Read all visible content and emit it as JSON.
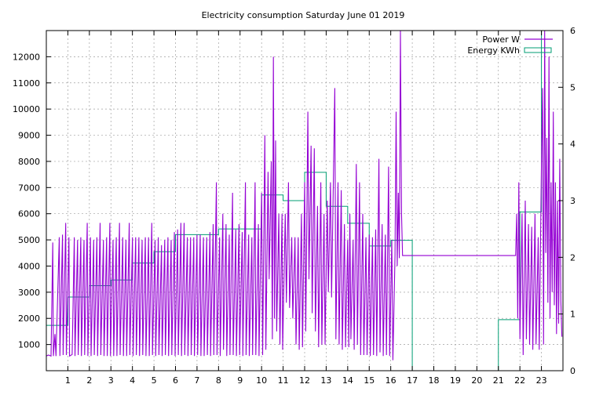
{
  "chart_data": {
    "type": "line",
    "title": "Electricity consumption Saturday June 01 2019",
    "xlabel": "",
    "ylabel": "",
    "y2label": "",
    "xlim": [
      0,
      24
    ],
    "ylim": [
      0,
      13000
    ],
    "y2lim": [
      0,
      6
    ],
    "x_ticks": [
      1,
      2,
      3,
      4,
      5,
      6,
      7,
      8,
      9,
      10,
      11,
      12,
      13,
      14,
      15,
      16,
      17,
      18,
      19,
      20,
      21,
      22,
      23
    ],
    "y_ticks": [
      1000,
      2000,
      3000,
      4000,
      5000,
      6000,
      7000,
      8000,
      9000,
      10000,
      11000,
      12000
    ],
    "y2_ticks": [
      0,
      1,
      2,
      3,
      4,
      5,
      6
    ],
    "grid": true,
    "legend_position": "top-right",
    "series": [
      {
        "name": "Power W",
        "axis": "left",
        "style": "line",
        "color": "#9400d3",
        "points": [
          [
            0.0,
            560
          ],
          [
            0.1,
            600
          ],
          [
            0.22,
            560
          ],
          [
            0.3,
            4900
          ],
          [
            0.33,
            560
          ],
          [
            0.4,
            1400
          ],
          [
            0.45,
            560
          ],
          [
            0.6,
            5100
          ],
          [
            0.63,
            560
          ],
          [
            0.75,
            5200
          ],
          [
            0.78,
            600
          ],
          [
            0.9,
            5650
          ],
          [
            0.93,
            600
          ],
          [
            1.05,
            5100
          ],
          [
            1.08,
            560
          ],
          [
            1.2,
            620
          ],
          [
            1.3,
            5100
          ],
          [
            1.33,
            560
          ],
          [
            1.45,
            5000
          ],
          [
            1.48,
            600
          ],
          [
            1.6,
            5100
          ],
          [
            1.63,
            560
          ],
          [
            1.75,
            5000
          ],
          [
            1.78,
            600
          ],
          [
            1.9,
            5650
          ],
          [
            1.93,
            560
          ],
          [
            2.05,
            5100
          ],
          [
            2.08,
            560
          ],
          [
            2.2,
            5000
          ],
          [
            2.23,
            600
          ],
          [
            2.35,
            5100
          ],
          [
            2.38,
            560
          ],
          [
            2.5,
            5650
          ],
          [
            2.53,
            600
          ],
          [
            2.65,
            5000
          ],
          [
            2.68,
            560
          ],
          [
            2.8,
            5100
          ],
          [
            2.83,
            560
          ],
          [
            2.95,
            5650
          ],
          [
            2.98,
            560
          ],
          [
            3.1,
            5000
          ],
          [
            3.13,
            560
          ],
          [
            3.25,
            5100
          ],
          [
            3.28,
            560
          ],
          [
            3.4,
            5650
          ],
          [
            3.43,
            600
          ],
          [
            3.55,
            5100
          ],
          [
            3.58,
            560
          ],
          [
            3.7,
            5000
          ],
          [
            3.73,
            560
          ],
          [
            3.85,
            5650
          ],
          [
            3.88,
            600
          ],
          [
            4.0,
            5100
          ],
          [
            4.03,
            560
          ],
          [
            4.15,
            5100
          ],
          [
            4.18,
            600
          ],
          [
            4.3,
            5100
          ],
          [
            4.33,
            560
          ],
          [
            4.45,
            5000
          ],
          [
            4.48,
            600
          ],
          [
            4.6,
            5100
          ],
          [
            4.63,
            560
          ],
          [
            4.75,
            5100
          ],
          [
            4.78,
            560
          ],
          [
            4.9,
            5650
          ],
          [
            4.93,
            600
          ],
          [
            5.05,
            5000
          ],
          [
            5.08,
            560
          ],
          [
            5.2,
            5100
          ],
          [
            5.23,
            600
          ],
          [
            5.35,
            4800
          ],
          [
            5.38,
            560
          ],
          [
            5.5,
            5000
          ],
          [
            5.53,
            600
          ],
          [
            5.65,
            5100
          ],
          [
            5.68,
            560
          ],
          [
            5.8,
            5000
          ],
          [
            5.83,
            600
          ],
          [
            5.95,
            5300
          ],
          [
            5.98,
            560
          ],
          [
            6.1,
            5400
          ],
          [
            6.13,
            600
          ],
          [
            6.25,
            5650
          ],
          [
            6.28,
            560
          ],
          [
            6.4,
            5650
          ],
          [
            6.43,
            600
          ],
          [
            6.55,
            5100
          ],
          [
            6.58,
            560
          ],
          [
            6.7,
            5100
          ],
          [
            6.73,
            600
          ],
          [
            6.85,
            5100
          ],
          [
            6.88,
            560
          ],
          [
            7.0,
            5200
          ],
          [
            7.03,
            600
          ],
          [
            7.15,
            5200
          ],
          [
            7.18,
            560
          ],
          [
            7.3,
            5100
          ],
          [
            7.33,
            560
          ],
          [
            7.45,
            5100
          ],
          [
            7.48,
            600
          ],
          [
            7.6,
            5300
          ],
          [
            7.63,
            560
          ],
          [
            7.75,
            5600
          ],
          [
            7.78,
            600
          ],
          [
            7.9,
            7200
          ],
          [
            7.93,
            600
          ],
          [
            8.05,
            5100
          ],
          [
            8.08,
            560
          ],
          [
            8.2,
            6000
          ],
          [
            8.23,
            800
          ],
          [
            8.35,
            5600
          ],
          [
            8.38,
            560
          ],
          [
            8.5,
            5200
          ],
          [
            8.53,
            600
          ],
          [
            8.65,
            6800
          ],
          [
            8.68,
            600
          ],
          [
            8.8,
            5400
          ],
          [
            8.83,
            560
          ],
          [
            8.95,
            5600
          ],
          [
            8.98,
            600
          ],
          [
            9.1,
            5300
          ],
          [
            9.13,
            560
          ],
          [
            9.25,
            7200
          ],
          [
            9.28,
            600
          ],
          [
            9.4,
            5200
          ],
          [
            9.43,
            560
          ],
          [
            9.55,
            5100
          ],
          [
            9.58,
            600
          ],
          [
            9.7,
            7200
          ],
          [
            9.73,
            600
          ],
          [
            9.85,
            5600
          ],
          [
            9.88,
            560
          ],
          [
            10.0,
            6800
          ],
          [
            10.05,
            600
          ],
          [
            10.15,
            9000
          ],
          [
            10.2,
            800
          ],
          [
            10.3,
            7600
          ],
          [
            10.35,
            3500
          ],
          [
            10.45,
            8000
          ],
          [
            10.5,
            1200
          ],
          [
            10.55,
            12000
          ],
          [
            10.6,
            2000
          ],
          [
            10.65,
            8800
          ],
          [
            10.7,
            1500
          ],
          [
            10.8,
            6000
          ],
          [
            10.85,
            1000
          ],
          [
            10.95,
            6000
          ],
          [
            10.98,
            800
          ],
          [
            11.1,
            6000
          ],
          [
            11.15,
            2600
          ],
          [
            11.25,
            7200
          ],
          [
            11.3,
            2400
          ],
          [
            11.4,
            5100
          ],
          [
            11.45,
            2000
          ],
          [
            11.55,
            5100
          ],
          [
            11.6,
            1000
          ],
          [
            11.7,
            5100
          ],
          [
            11.75,
            800
          ],
          [
            11.85,
            6000
          ],
          [
            11.9,
            900
          ],
          [
            12.0,
            7200
          ],
          [
            12.05,
            1500
          ],
          [
            12.15,
            9900
          ],
          [
            12.2,
            3500
          ],
          [
            12.3,
            8600
          ],
          [
            12.35,
            2200
          ],
          [
            12.45,
            8500
          ],
          [
            12.5,
            1500
          ],
          [
            12.6,
            6300
          ],
          [
            12.65,
            900
          ],
          [
            12.75,
            7200
          ],
          [
            12.8,
            1000
          ],
          [
            12.9,
            6000
          ],
          [
            12.95,
            1000
          ],
          [
            13.05,
            6500
          ],
          [
            13.1,
            3000
          ],
          [
            13.2,
            7200
          ],
          [
            13.25,
            2800
          ],
          [
            13.4,
            10800
          ],
          [
            13.45,
            1200
          ],
          [
            13.55,
            7200
          ],
          [
            13.6,
            1000
          ],
          [
            13.7,
            6900
          ],
          [
            13.75,
            800
          ],
          [
            13.85,
            5600
          ],
          [
            13.9,
            900
          ],
          [
            14.0,
            5000
          ],
          [
            14.05,
            900
          ],
          [
            14.1,
            6000
          ],
          [
            14.15,
            1200
          ],
          [
            14.25,
            5000
          ],
          [
            14.3,
            800
          ],
          [
            14.4,
            7900
          ],
          [
            14.45,
            1000
          ],
          [
            14.55,
            7200
          ],
          [
            14.6,
            600
          ],
          [
            14.7,
            6000
          ],
          [
            14.75,
            600
          ],
          [
            14.85,
            5100
          ],
          [
            14.9,
            600
          ],
          [
            15.0,
            5200
          ],
          [
            15.05,
            560
          ],
          [
            15.15,
            5100
          ],
          [
            15.2,
            600
          ],
          [
            15.3,
            5400
          ],
          [
            15.35,
            560
          ],
          [
            15.45,
            8100
          ],
          [
            15.5,
            700
          ],
          [
            15.6,
            5600
          ],
          [
            15.65,
            560
          ],
          [
            15.75,
            5200
          ],
          [
            15.8,
            600
          ],
          [
            15.9,
            7800
          ],
          [
            15.95,
            560
          ],
          [
            16.05,
            5000
          ],
          [
            16.1,
            400
          ],
          [
            16.2,
            4400
          ],
          [
            16.25,
            9900
          ],
          [
            16.3,
            4000
          ],
          [
            16.35,
            6800
          ],
          [
            16.4,
            4300
          ],
          [
            16.45,
            13000
          ],
          [
            16.5,
            6000
          ],
          [
            16.55,
            4400
          ],
          [
            21.8,
            4400
          ],
          [
            21.85,
            6000
          ],
          [
            21.9,
            2000
          ],
          [
            21.95,
            7200
          ],
          [
            22.0,
            1200
          ],
          [
            22.1,
            6000
          ],
          [
            22.15,
            600
          ],
          [
            22.25,
            6500
          ],
          [
            22.3,
            1200
          ],
          [
            22.4,
            5600
          ],
          [
            22.45,
            1000
          ],
          [
            22.55,
            5500
          ],
          [
            22.6,
            800
          ],
          [
            22.7,
            6000
          ],
          [
            22.75,
            1000
          ],
          [
            22.85,
            5100
          ],
          [
            22.9,
            800
          ],
          [
            23.0,
            7900
          ],
          [
            23.05,
            10800
          ],
          [
            23.1,
            1000
          ],
          [
            23.15,
            13000
          ],
          [
            23.2,
            4500
          ],
          [
            23.25,
            8900
          ],
          [
            23.3,
            2600
          ],
          [
            23.35,
            12000
          ],
          [
            23.4,
            2000
          ],
          [
            23.45,
            7200
          ],
          [
            23.5,
            3000
          ],
          [
            23.55,
            9900
          ],
          [
            23.6,
            2500
          ],
          [
            23.65,
            7200
          ],
          [
            23.7,
            1400
          ],
          [
            23.75,
            6500
          ],
          [
            23.8,
            1800
          ],
          [
            23.85,
            8100
          ],
          [
            23.9,
            2700
          ],
          [
            23.95,
            1300
          ]
        ]
      },
      {
        "name": "Energy KWh",
        "axis": "right",
        "style": "steps",
        "color": "#009e73",
        "values": [
          0.8,
          1.3,
          1.5,
          1.6,
          1.9,
          2.1,
          2.4,
          2.4,
          2.5,
          2.5,
          3.1,
          3.0,
          3.5,
          2.9,
          2.6,
          2.2,
          2.3,
          0,
          0,
          0,
          0,
          0.9,
          2.8,
          6.0
        ]
      }
    ]
  }
}
